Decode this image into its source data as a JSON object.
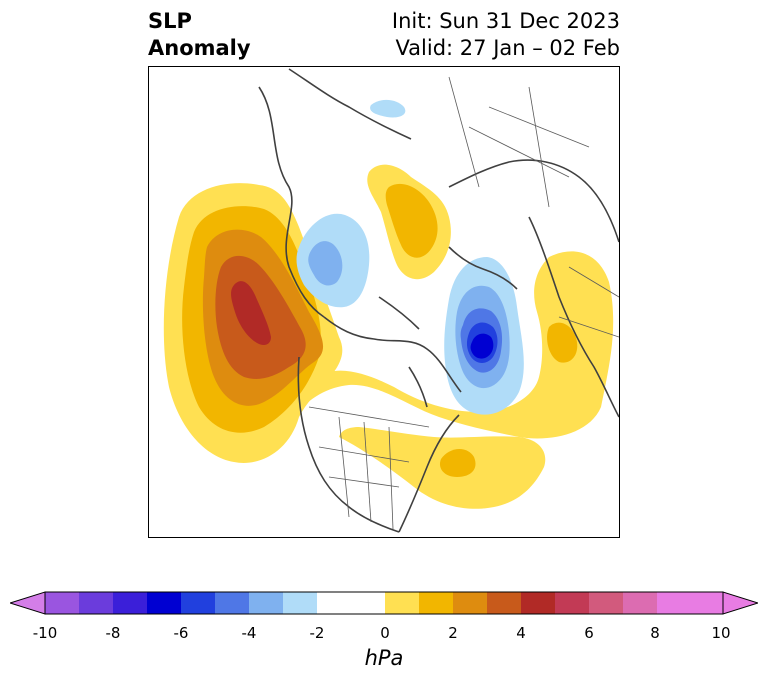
{
  "title": {
    "left_line1": "SLP",
    "left_line2": "Anomaly",
    "right_line1": "Init: Sun 31 Dec 2023",
    "right_line2": "Valid: 27 Jan – 02 Feb"
  },
  "colorbar": {
    "label": "hPa",
    "tick_labels": [
      "-10",
      "-8",
      "-6",
      "-4",
      "-2",
      "0",
      "2",
      "4",
      "6",
      "8",
      "10"
    ],
    "colors": [
      "#d47ee8",
      "#9a55e0",
      "#6b3cdc",
      "#3b1fd9",
      "#0000d2",
      "#2140de",
      "#4f77e6",
      "#7fb1ef",
      "#b0dcf8",
      "#ffffff",
      "#ffffff",
      "#ffe052",
      "#f2b600",
      "#de8c0f",
      "#c85a1b",
      "#b12a26",
      "#c23a55",
      "#d25a7d",
      "#dc6cb1",
      "#e87ce3"
    ]
  },
  "legend_colors": {
    "neg_weak": "#b0dcf8",
    "neg_mod": "#7fb1ef",
    "neg_strong": "#4f77e6",
    "neg_core": "#0000d2",
    "neg_core2": "#2140de",
    "pos_weak": "#ffe052",
    "pos_mod": "#f2b600",
    "pos_strong": "#de8c0f",
    "pos_core": "#c85a1b",
    "pos_core2": "#b12a26"
  }
}
